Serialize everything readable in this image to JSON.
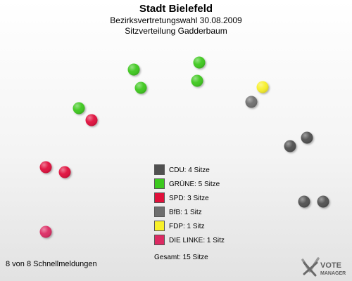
{
  "header": {
    "title": "Stadt Bielefeld",
    "subtitle1": "Bezirksvertretungswahl 30.08.2009",
    "subtitle2": "Sitzverteilung Gadderbaum"
  },
  "chart_data": {
    "type": "scatter",
    "title": "Stadt Bielefeld",
    "subtitle": "Bezirksvertretungswahl 30.08.2009 · Sitzverteilung Gadderbaum",
    "total_seats": 15,
    "series": [
      {
        "name": "CDU",
        "label": "CDU: 4 Sitze",
        "seats": 4,
        "color": "#505050"
      },
      {
        "name": "GRÜNE",
        "label": "GRÜNE: 5 Sitze",
        "seats": 5,
        "color": "#3cc81e"
      },
      {
        "name": "SPD",
        "label": "SPD: 3 Sitze",
        "seats": 3,
        "color": "#e0103a"
      },
      {
        "name": "BfB",
        "label": "BfB: 1 Sitz",
        "seats": 1,
        "color": "#6e6e6e"
      },
      {
        "name": "FDP",
        "label": "FDP: 1 Sitz",
        "seats": 1,
        "color": "#f8f02a"
      },
      {
        "name": "DIE LINKE",
        "label": "DIE LINKE: 1 Sitz",
        "seats": 1,
        "color": "#dc2a62"
      }
    ],
    "total_label": "Gesamt: 15 Sitze"
  },
  "footer": {
    "status": "8 von 8 Schnellmeldungen"
  },
  "logo": {
    "line1": "VOTE",
    "line2": "MANAGER"
  }
}
